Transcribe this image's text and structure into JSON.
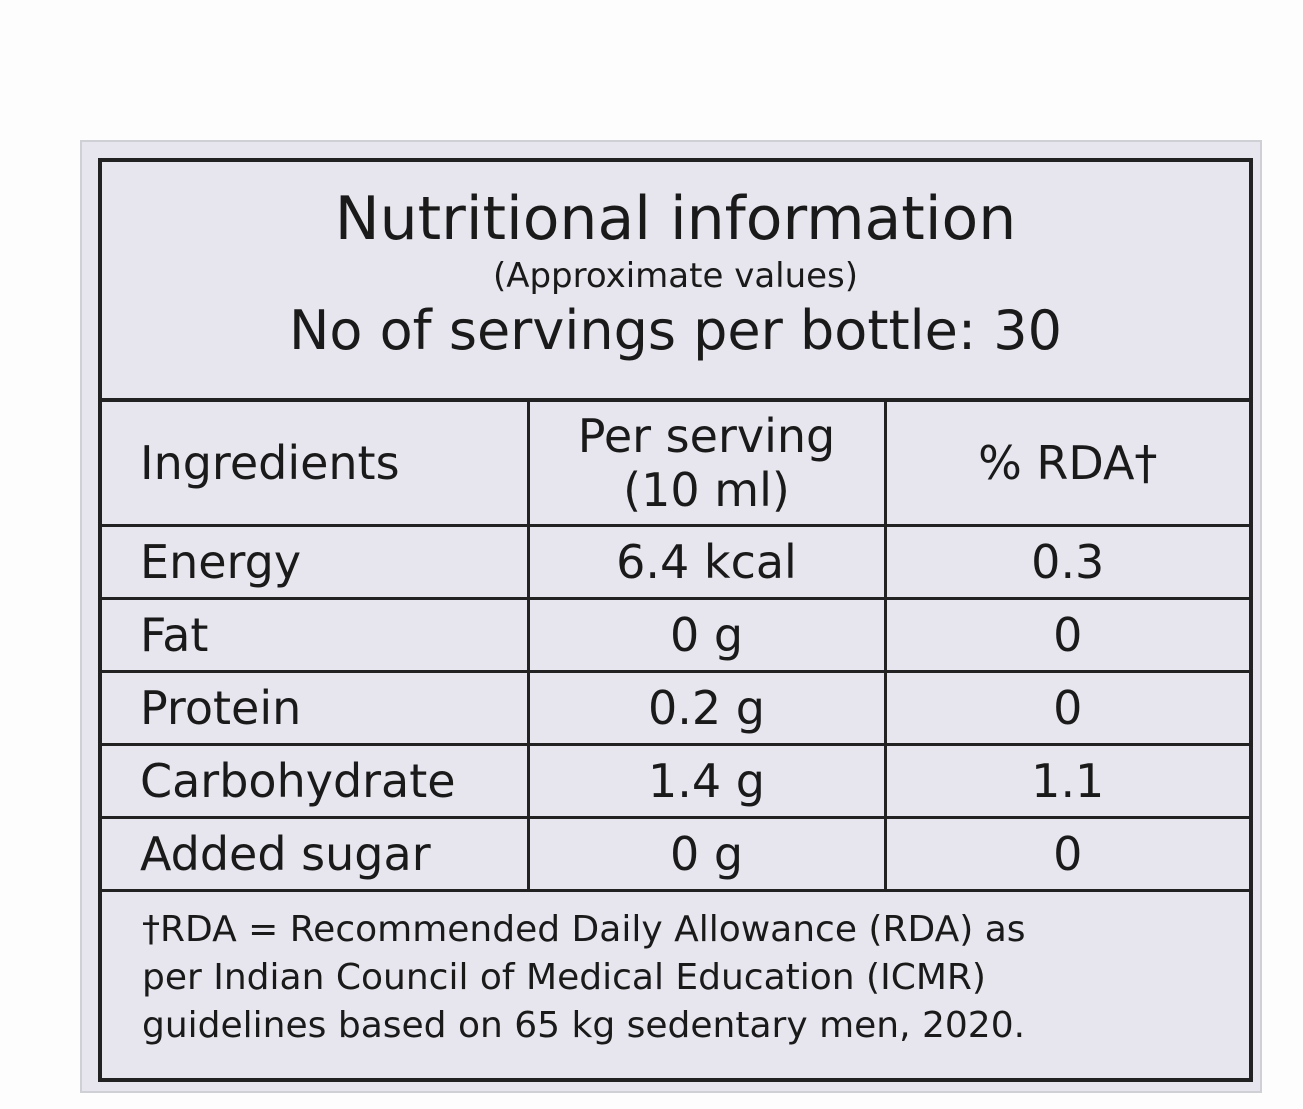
{
  "header": {
    "title": "Nutritional information",
    "subtitle": "(Approximate values)",
    "servings": "No of servings per bottle: 30"
  },
  "table": {
    "headers": [
      "Ingredients",
      "Per serving (10 ml)",
      "% RDA†"
    ],
    "rows": [
      [
        "Energy",
        "6.4 kcal",
        "0.3"
      ],
      [
        "Fat",
        "0 g",
        "0"
      ],
      [
        "Protein",
        "0.2 g",
        "0"
      ],
      [
        "Carbohydrate",
        "1.4 g",
        "1.1"
      ],
      [
        "Added sugar",
        "0 g",
        "0"
      ]
    ]
  },
  "footnote": {
    "lines": [
      "†RDA = Recommended Daily Allowance (RDA) as",
      "per Indian Council of Medical Education (ICMR)",
      "guidelines based on 65 kg sedentary men, 2020."
    ]
  }
}
